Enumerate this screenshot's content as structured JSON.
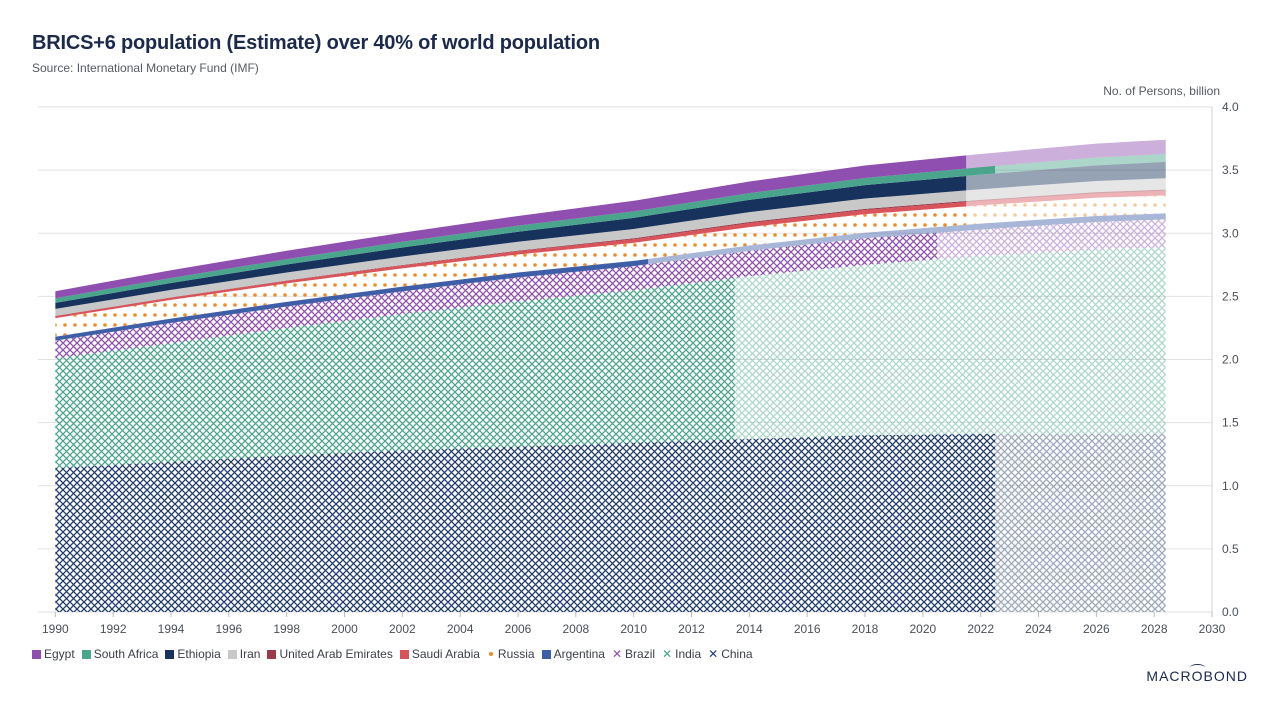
{
  "header": {
    "title": "BRICS+6 population (Estimate) over 40% of world population",
    "subtitle": "Source: International Monetary Fund (IMF)",
    "unit_label": "No. of Persons, billion"
  },
  "logo": {
    "text_a": "MACR",
    "text_o": "O",
    "text_b": "BOND"
  },
  "chart_data": {
    "type": "area",
    "stacked": true,
    "title": "BRICS+6 population (Estimate) over 40% of world population",
    "ylabel": "No. of Persons, billion",
    "xlabel": "",
    "xlim": [
      1989.4,
      2030
    ],
    "ylim": [
      0,
      4.0
    ],
    "y_ticks": [
      "0.0",
      "0.5",
      "1.0",
      "1.5",
      "2.0",
      "2.5",
      "3.0",
      "3.5",
      "4.0"
    ],
    "x_ticks": [
      "1990",
      "1992",
      "1994",
      "1996",
      "1998",
      "2000",
      "2002",
      "2004",
      "2006",
      "2008",
      "2010",
      "2012",
      "2014",
      "2016",
      "2018",
      "2020",
      "2022",
      "2024",
      "2026",
      "2028",
      "2030"
    ],
    "y_axis_position": "right",
    "grid": true,
    "legend_position": "bottom",
    "x": [
      1990,
      1994,
      1998,
      2002,
      2006,
      2010,
      2014,
      2018,
      2022,
      2026,
      2028.4
    ],
    "series": [
      {
        "name": "China",
        "color": "#1f3a6e",
        "pattern": "crosshatch",
        "estimate_from": 2022.5,
        "values": [
          1.14,
          1.19,
          1.24,
          1.28,
          1.31,
          1.34,
          1.37,
          1.4,
          1.41,
          1.41,
          1.41
        ]
      },
      {
        "name": "India",
        "color": "#4aa58c",
        "pattern": "crosshatch",
        "estimate_from": 2013.5,
        "values": [
          0.87,
          0.94,
          1.01,
          1.08,
          1.15,
          1.21,
          1.29,
          1.35,
          1.41,
          1.46,
          1.48
        ]
      },
      {
        "name": "Brazil",
        "color": "#8e4fb0",
        "pattern": "crosshatch",
        "estimate_from": 2020.5,
        "values": [
          0.14,
          0.16,
          0.17,
          0.18,
          0.19,
          0.19,
          0.2,
          0.21,
          0.21,
          0.22,
          0.22
        ]
      },
      {
        "name": "Argentina",
        "color": "#3f5ea8",
        "pattern": "solid",
        "estimate_from": 2010.5,
        "values": [
          0.03,
          0.034,
          0.036,
          0.037,
          0.039,
          0.041,
          0.043,
          0.044,
          0.046,
          0.047,
          0.047
        ]
      },
      {
        "name": "Russia",
        "color": "#f08a2a",
        "pattern": "dots",
        "estimate_from": 2021.5,
        "values": [
          0.148,
          0.148,
          0.147,
          0.145,
          0.143,
          0.143,
          0.146,
          0.147,
          0.146,
          0.144,
          0.143
        ]
      },
      {
        "name": "Saudi Arabia",
        "color": "#d9535a",
        "pattern": "solid",
        "estimate_from": 2021.5,
        "values": [
          0.016,
          0.018,
          0.02,
          0.023,
          0.025,
          0.028,
          0.031,
          0.033,
          0.033,
          0.035,
          0.036
        ]
      },
      {
        "name": "United Arab Emirates",
        "color": "#9c3a4a",
        "pattern": "solid",
        "estimate_from": 2021.5,
        "values": [
          0.002,
          0.002,
          0.003,
          0.004,
          0.005,
          0.008,
          0.009,
          0.009,
          0.009,
          0.01,
          0.01
        ]
      },
      {
        "name": "Iran",
        "color": "#c8c8c8",
        "pattern": "solid",
        "estimate_from": 2021.5,
        "values": [
          0.055,
          0.059,
          0.063,
          0.067,
          0.071,
          0.074,
          0.078,
          0.082,
          0.085,
          0.088,
          0.09
        ]
      },
      {
        "name": "Ethiopia",
        "color": "#17325c",
        "pattern": "solid",
        "estimate_from": 2021.5,
        "values": [
          0.048,
          0.055,
          0.063,
          0.071,
          0.079,
          0.088,
          0.097,
          0.106,
          0.115,
          0.124,
          0.129
        ]
      },
      {
        "name": "South Africa",
        "color": "#4aa58c",
        "pattern": "solid",
        "estimate_from": 2022.5,
        "values": [
          0.036,
          0.04,
          0.043,
          0.046,
          0.048,
          0.051,
          0.054,
          0.057,
          0.06,
          0.062,
          0.063
        ]
      },
      {
        "name": "Egypt",
        "color": "#8e4fb0",
        "pattern": "solid",
        "estimate_from": 2021.5,
        "values": [
          0.056,
          0.061,
          0.066,
          0.071,
          0.077,
          0.084,
          0.092,
          0.099,
          0.104,
          0.11,
          0.113
        ]
      }
    ],
    "legend": [
      {
        "name": "Egypt",
        "type": "square",
        "color": "#8e4fb0"
      },
      {
        "name": "South Africa",
        "type": "square",
        "color": "#4aa58c"
      },
      {
        "name": "Ethiopia",
        "type": "square",
        "color": "#17325c"
      },
      {
        "name": "Iran",
        "type": "square",
        "color": "#c8c8c8"
      },
      {
        "name": "United Arab Emirates",
        "type": "square",
        "color": "#9c3a4a"
      },
      {
        "name": "Saudi Arabia",
        "type": "square",
        "color": "#d9535a"
      },
      {
        "name": "Russia",
        "type": "dot",
        "color": "#f08a2a"
      },
      {
        "name": "Argentina",
        "type": "square",
        "color": "#3f5ea8"
      },
      {
        "name": "Brazil",
        "type": "x",
        "color": "#8e4fb0"
      },
      {
        "name": "India",
        "type": "x",
        "color": "#4aa58c"
      },
      {
        "name": "China",
        "type": "x",
        "color": "#1f3a6e"
      }
    ]
  }
}
